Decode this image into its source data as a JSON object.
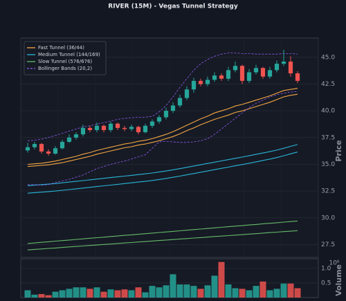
{
  "chart_data": {
    "type": "candlestick",
    "title": "RIVER (15M) - Vegas Tunnel Strategy",
    "y_label": "Price",
    "volume_label": "Volume",
    "volume_offset_label": "10⁶",
    "up_color": "#26a69a",
    "down_color": "#ef5350",
    "grid": true,
    "legend": "upper left",
    "ylim": [
      26.3,
      46.8
    ],
    "yticks": [
      27.5,
      {
        "value": 30,
        "label": "30.0"
      },
      32.5,
      {
        "value": 35,
        "label": "35.0"
      },
      37.5,
      {
        "value": 40,
        "label": "40.0"
      },
      42.5,
      {
        "value": 45,
        "label": "45.0"
      }
    ],
    "volume_ylim": [
      0,
      1.33
    ],
    "volume_yticks": [
      0.5,
      {
        "value": 1,
        "label": "1.0"
      }
    ],
    "open": [
      36.3,
      36.6,
      36.9,
      36.2,
      36.0,
      36.5,
      37.1,
      37.5,
      37.8,
      38.4,
      38.2,
      38.6,
      38.2,
      38.8,
      38.4,
      38.3,
      38.5,
      38.0,
      38.6,
      39.0,
      39.4,
      40.0,
      40.5,
      41.2,
      42.0,
      42.8,
      42.5,
      42.9,
      43.3,
      43.0,
      43.8,
      44.2,
      42.8,
      43.6,
      44.0,
      43.2,
      43.8,
      44.4,
      44.6,
      43.5
    ],
    "high": [
      37.0,
      37.1,
      37.0,
      36.4,
      36.7,
      37.3,
      37.8,
      38.0,
      38.7,
      38.6,
      38.9,
      38.7,
      39.0,
      38.9,
      38.6,
      38.7,
      38.6,
      38.8,
      39.2,
      39.6,
      40.3,
      40.8,
      41.5,
      42.3,
      43.1,
      43.0,
      43.2,
      43.6,
      43.5,
      44.1,
      44.6,
      44.3,
      43.9,
      44.3,
      44.1,
      44.1,
      44.7,
      45.7,
      45.1,
      43.7
    ],
    "low": [
      36.1,
      36.4,
      36.0,
      35.8,
      35.9,
      36.4,
      37.0,
      37.3,
      37.6,
      38.0,
      38.0,
      38.0,
      38.0,
      38.2,
      38.1,
      38.1,
      37.8,
      37.9,
      38.4,
      38.8,
      39.2,
      39.8,
      40.3,
      41.0,
      41.7,
      42.3,
      42.3,
      42.7,
      42.8,
      42.8,
      43.6,
      42.5,
      42.6,
      43.4,
      43.0,
      43.0,
      43.6,
      44.2,
      43.2,
      42.6
    ],
    "close": [
      36.6,
      36.9,
      36.2,
      36.0,
      36.5,
      37.1,
      37.5,
      37.8,
      38.4,
      38.2,
      38.6,
      38.2,
      38.8,
      38.4,
      38.3,
      38.5,
      38.0,
      38.6,
      39.0,
      39.4,
      40.0,
      40.5,
      41.2,
      42.0,
      42.8,
      42.5,
      42.9,
      43.3,
      43.0,
      43.8,
      44.2,
      42.8,
      43.6,
      44.0,
      43.2,
      43.8,
      44.4,
      44.6,
      43.5,
      42.8
    ],
    "volume": [
      0.25,
      0.1,
      0.12,
      0.08,
      0.2,
      0.25,
      0.3,
      0.35,
      0.35,
      0.3,
      0.35,
      0.2,
      0.28,
      0.25,
      0.28,
      0.25,
      0.35,
      0.18,
      0.4,
      0.35,
      0.42,
      0.8,
      0.45,
      0.45,
      0.4,
      0.3,
      0.42,
      0.75,
      1.22,
      0.45,
      0.32,
      0.3,
      0.25,
      0.4,
      0.55,
      0.25,
      0.3,
      0.48,
      0.48,
      0.32
    ],
    "bands": [
      {
        "name": "Fast Tunnel (36/44)",
        "color": "#f5a742",
        "dashed": false,
        "upper": [
          35.0,
          35.05,
          35.1,
          35.2,
          35.3,
          35.45,
          35.6,
          35.75,
          35.95,
          36.1,
          36.3,
          36.45,
          36.6,
          36.75,
          36.9,
          37.0,
          37.15,
          37.25,
          37.4,
          37.6,
          37.8,
          38.05,
          38.35,
          38.65,
          38.95,
          39.25,
          39.5,
          39.8,
          40.0,
          40.2,
          40.45,
          40.6,
          40.8,
          41.0,
          41.2,
          41.4,
          41.65,
          41.9,
          42.0,
          42.1
        ],
        "lower": [
          34.8,
          34.85,
          34.9,
          34.95,
          35.05,
          35.15,
          35.3,
          35.45,
          35.6,
          35.75,
          35.95,
          36.1,
          36.25,
          36.4,
          36.55,
          36.65,
          36.8,
          36.9,
          37.05,
          37.2,
          37.4,
          37.6,
          37.85,
          38.15,
          38.4,
          38.7,
          38.95,
          39.2,
          39.4,
          39.6,
          39.85,
          40.0,
          40.2,
          40.4,
          40.6,
          40.8,
          41.05,
          41.3,
          41.45,
          41.55
        ]
      },
      {
        "name": "Medium Tunnel (144/169)",
        "color": "#29b6d8",
        "dashed": false,
        "upper": [
          33.0,
          33.05,
          33.1,
          33.15,
          33.2,
          33.27,
          33.34,
          33.41,
          33.48,
          33.55,
          33.62,
          33.69,
          33.76,
          33.83,
          33.9,
          33.97,
          34.04,
          34.11,
          34.19,
          34.28,
          34.38,
          34.49,
          34.6,
          34.72,
          34.84,
          34.96,
          35.08,
          35.2,
          35.32,
          35.44,
          35.56,
          35.68,
          35.8,
          35.93,
          36.06,
          36.19,
          36.33,
          36.5,
          36.68,
          36.85
        ],
        "lower": [
          32.3,
          32.35,
          32.4,
          32.45,
          32.5,
          32.57,
          32.64,
          32.71,
          32.78,
          32.85,
          32.92,
          32.99,
          33.06,
          33.13,
          33.2,
          33.27,
          33.34,
          33.41,
          33.49,
          33.58,
          33.68,
          33.79,
          33.9,
          34.02,
          34.14,
          34.26,
          34.38,
          34.5,
          34.62,
          34.74,
          34.86,
          34.98,
          35.1,
          35.23,
          35.36,
          35.49,
          35.63,
          35.8,
          35.98,
          36.15
        ]
      },
      {
        "name": "Slow Tunnel (576/676)",
        "color": "#66bb6a",
        "dashed": false,
        "upper": [
          27.6,
          27.65,
          27.71,
          27.76,
          27.82,
          27.87,
          27.92,
          27.98,
          28.03,
          28.09,
          28.14,
          28.19,
          28.25,
          28.3,
          28.36,
          28.41,
          28.46,
          28.52,
          28.57,
          28.63,
          28.68,
          28.73,
          28.79,
          28.84,
          28.9,
          28.95,
          29.0,
          29.06,
          29.11,
          29.17,
          29.22,
          29.27,
          29.33,
          29.38,
          29.44,
          29.49,
          29.54,
          29.6,
          29.65,
          29.7
        ],
        "lower": [
          27.0,
          27.05,
          27.09,
          27.14,
          27.18,
          27.23,
          27.28,
          27.32,
          27.37,
          27.42,
          27.46,
          27.51,
          27.55,
          27.6,
          27.65,
          27.69,
          27.74,
          27.78,
          27.83,
          27.88,
          27.92,
          27.97,
          28.02,
          28.06,
          28.11,
          28.15,
          28.2,
          28.25,
          28.29,
          28.34,
          28.38,
          28.43,
          28.48,
          28.52,
          28.57,
          28.62,
          28.66,
          28.71,
          28.75,
          28.8
        ]
      },
      {
        "name": "Bollinger Bands (20,2)",
        "color": "#8e5cf0",
        "dashed": true,
        "upper": [
          37.2,
          37.25,
          37.35,
          37.5,
          37.7,
          37.9,
          38.1,
          38.3,
          38.5,
          38.6,
          38.75,
          38.9,
          39.05,
          39.2,
          39.3,
          39.35,
          39.4,
          39.4,
          39.5,
          39.9,
          40.5,
          41.3,
          42.2,
          43.0,
          43.8,
          44.4,
          44.8,
          45.1,
          45.3,
          45.4,
          45.4,
          45.35,
          45.35,
          45.3,
          45.3,
          45.3,
          45.3,
          45.35,
          45.35,
          45.3
        ],
        "lower": [
          33.1,
          33.1,
          33.05,
          33.1,
          33.3,
          33.45,
          33.6,
          33.8,
          34.0,
          34.3,
          34.6,
          34.8,
          35.0,
          35.15,
          35.3,
          35.5,
          35.7,
          35.9,
          36.5,
          37.1,
          37.15,
          37.1,
          37.05,
          37.05,
          37.1,
          37.2,
          37.4,
          37.8,
          38.3,
          38.8,
          39.3,
          39.8,
          40.3,
          40.7,
          41.0,
          41.3,
          41.5,
          41.65,
          41.75,
          41.8
        ]
      }
    ]
  }
}
